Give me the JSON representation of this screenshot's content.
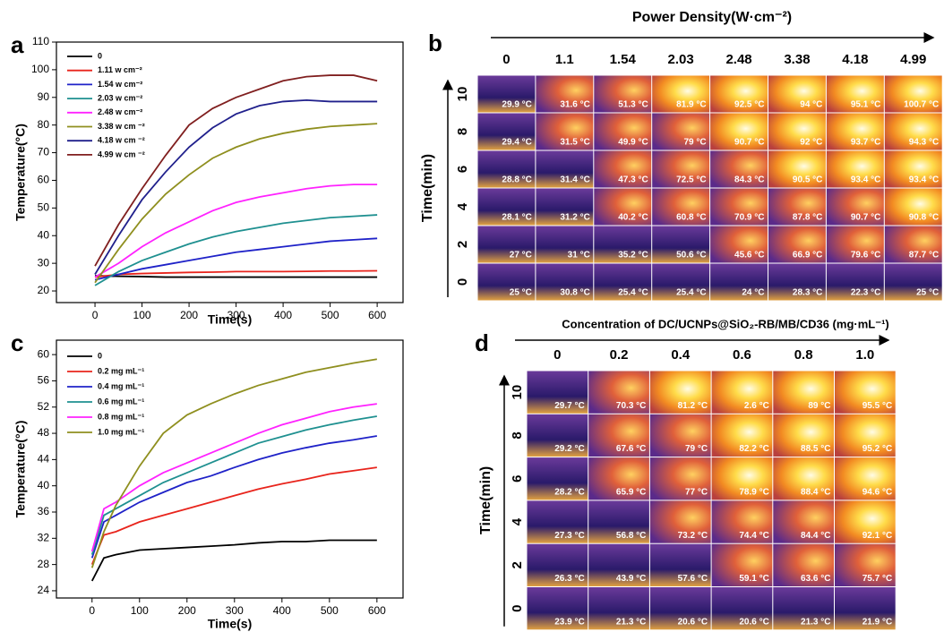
{
  "chart_data": [
    {
      "type": "line",
      "panel_label": "a",
      "xlabel": "Time(s)",
      "ylabel": "Temperature(°C)",
      "x": [
        0,
        50,
        100,
        150,
        200,
        250,
        300,
        350,
        400,
        450,
        500,
        550,
        600
      ],
      "xlim": [
        -82,
        655
      ],
      "ylim": [
        15.8,
        110
      ],
      "xticks": [
        0,
        100,
        200,
        300,
        400,
        500,
        600
      ],
      "yticks": [
        20,
        30,
        40,
        50,
        60,
        70,
        80,
        90,
        100,
        110
      ],
      "series": [
        {
          "name": "0",
          "color": "#000000",
          "values": [
            25.5,
            25.3,
            25.2,
            25,
            25,
            25,
            25,
            25,
            25,
            25,
            25,
            25,
            25
          ]
        },
        {
          "name": "1.11 w cm⁻²",
          "color": "#e8241c",
          "values": [
            25,
            26,
            26.3,
            26.5,
            26.7,
            26.8,
            27,
            27,
            27,
            27.1,
            27.2,
            27.2,
            27.3
          ]
        },
        {
          "name": "1.54 w cm⁻²",
          "color": "#1f22c8",
          "values": [
            24,
            26,
            28,
            29.5,
            31,
            32.5,
            34,
            35,
            36,
            37,
            38,
            38.5,
            39
          ]
        },
        {
          "name": "2.03 w cm⁻²",
          "color": "#1f9090",
          "values": [
            22,
            27,
            31,
            34,
            37,
            39.5,
            41.5,
            43,
            44.5,
            45.5,
            46.5,
            47,
            47.5
          ]
        },
        {
          "name": "2.48 w cm⁻²",
          "color": "#ff22ff",
          "values": [
            25,
            30,
            36,
            41,
            45,
            49,
            52,
            54,
            55.5,
            57,
            58,
            58.5,
            58.5
          ]
        },
        {
          "name": "3.38 w cm ⁻²",
          "color": "#8f8f1f",
          "values": [
            23,
            35,
            46,
            55,
            62,
            68,
            72,
            75,
            77,
            78.5,
            79.5,
            80,
            80.5
          ]
        },
        {
          "name": "4.18 w cm ⁻²",
          "color": "#20208c",
          "values": [
            26,
            40,
            53,
            63,
            72,
            79,
            84,
            87,
            88.5,
            89,
            88.5,
            88.5,
            88.5
          ]
        },
        {
          "name": "4.99 w cm ⁻²",
          "color": "#801f1f",
          "values": [
            29,
            44,
            57,
            69,
            80,
            86,
            90,
            93,
            96,
            97.5,
            98,
            98,
            96
          ]
        }
      ]
    },
    {
      "type": "line",
      "panel_label": "c",
      "xlabel": "Time(s)",
      "ylabel": "Temperature(°C)",
      "x": [
        0,
        25,
        50,
        100,
        150,
        200,
        250,
        300,
        350,
        400,
        450,
        500,
        550,
        600
      ],
      "xlim": [
        -75,
        655
      ],
      "ylim": [
        22.9,
        62.2
      ],
      "xticks": [
        0,
        100,
        200,
        300,
        400,
        500,
        600
      ],
      "yticks": [
        24,
        28,
        32,
        36,
        40,
        44,
        48,
        52,
        56,
        60
      ],
      "series": [
        {
          "name": "0",
          "color": "#000000",
          "values": [
            25.5,
            29,
            29.5,
            30.2,
            30.4,
            30.6,
            30.8,
            31,
            31.3,
            31.5,
            31.5,
            31.7,
            31.7,
            31.7
          ]
        },
        {
          "name": "0.2 mg mL⁻¹",
          "color": "#e8241c",
          "values": [
            28,
            32.5,
            33,
            34.5,
            35.5,
            36.5,
            37.5,
            38.5,
            39.5,
            40.3,
            41,
            41.8,
            42.3,
            42.8
          ]
        },
        {
          "name": "0.4 mg mL⁻¹",
          "color": "#1f22c8",
          "values": [
            29,
            34.5,
            35.5,
            37.5,
            39,
            40.5,
            41.5,
            42.8,
            44,
            45,
            45.8,
            46.5,
            47,
            47.6
          ]
        },
        {
          "name": "0.6 mg mL⁻¹",
          "color": "#1f9090",
          "values": [
            29.5,
            35.5,
            36.5,
            38.5,
            40.5,
            42,
            43.5,
            45,
            46.5,
            47.5,
            48.5,
            49.3,
            50,
            50.6
          ]
        },
        {
          "name": "0.8 mg mL⁻¹",
          "color": "#ff22ff",
          "values": [
            30,
            36.5,
            37.5,
            40,
            42,
            43.5,
            45,
            46.5,
            48,
            49.3,
            50.3,
            51.3,
            52,
            52.5
          ]
        },
        {
          "name": "1.0 mg mL⁻¹",
          "color": "#8f8f1f",
          "values": [
            27.5,
            33,
            37,
            43,
            48,
            50.8,
            52.5,
            54,
            55.3,
            56.3,
            57.3,
            58,
            58.7,
            59.3
          ]
        }
      ]
    }
  ],
  "thermal_grids": [
    {
      "panel_label": "b",
      "title": "Power Density(W·cm⁻²)",
      "row_title": "Time(min)",
      "columns": [
        "0",
        "1.1",
        "1.54",
        "2.03",
        "2.48",
        "3.38",
        "4.18",
        "4.99"
      ],
      "rows": [
        "10",
        "8",
        "6",
        "4",
        "2",
        "0"
      ],
      "cells": [
        [
          "29.9 °C",
          "31.6 °C",
          "51.3 °C",
          "81.9 °C",
          "92.5 °C",
          "94 °C",
          "95.1 °C",
          "100.7 °C"
        ],
        [
          "29.4 °C",
          "31.5 °C",
          "49.9 °C",
          "79 °C",
          "90.7 °C",
          "92 °C",
          "93.7 °C",
          "94.3 °C"
        ],
        [
          "28.8 °C",
          "31.4 °C",
          "47.3 °C",
          "72.5 °C",
          "84.3 °C",
          "90.5 °C",
          "93.4 °C",
          "93.4 °C"
        ],
        [
          "28.1 °C",
          "31.2 °C",
          "40.2 °C",
          "60.8 °C",
          "70.9 °C",
          "87.8 °C",
          "90.7 °C",
          "90.8 °C"
        ],
        [
          "27 °C",
          "31 °C",
          "35.2 °C",
          "50.6 °C",
          "45.6 °C",
          "66.9 °C",
          "79.6 °C",
          "87.7 °C"
        ],
        [
          "25 °C",
          "30.8 °C",
          "25.4 °C",
          "25.4 °C",
          "24 °C",
          "28.3 °C",
          "22.3 °C",
          "25 °C"
        ]
      ]
    },
    {
      "panel_label": "d",
      "title": "Concentration of  DC/UCNPs@SiO₂-RB/MB/CD36   (mg·mL⁻¹)",
      "row_title": "Time(min)",
      "columns": [
        "0",
        "0.2",
        "0.4",
        "0.6",
        "0.8",
        "1.0"
      ],
      "rows": [
        "10",
        "8",
        "6",
        "4",
        "2",
        "0"
      ],
      "cells": [
        [
          "29.7 °C",
          "70.3 °C",
          "81.2 °C",
          "2.6 °C",
          "89 °C",
          "95.5 °C"
        ],
        [
          "29.2 °C",
          "67.6 °C",
          "79 °C",
          "82.2 °C",
          "88.5 °C",
          "95.2 °C"
        ],
        [
          "28.2 °C",
          "65.9 °C",
          "77 °C",
          "78.9 °C",
          "88.4 °C",
          "94.6 °C"
        ],
        [
          "27.3 °C",
          "56.8 °C",
          "73.2 °C",
          "74.4 °C",
          "84.4 °C",
          "92.1 °C"
        ],
        [
          "26.3 °C",
          "43.9 °C",
          "57.6 °C",
          "59.1 °C",
          "63.6 °C",
          "75.7 °C"
        ],
        [
          "23.9 °C",
          "21.3 °C",
          "20.6 °C",
          "20.6 °C",
          "21.3 °C",
          "21.9 °C"
        ]
      ]
    }
  ]
}
